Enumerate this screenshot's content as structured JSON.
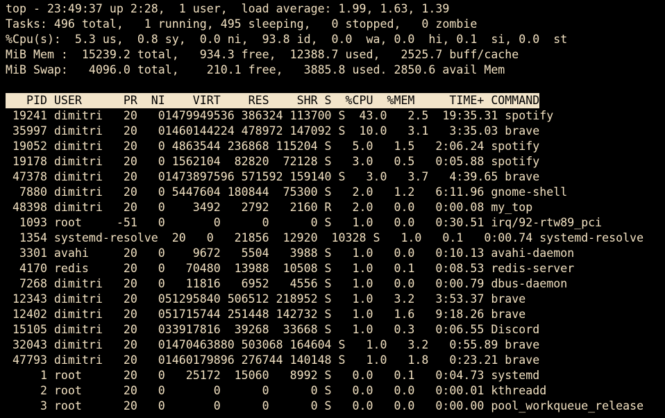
{
  "app": {
    "name": "top",
    "window_kind": "terminal"
  },
  "colors": {
    "background": "#000000",
    "foreground": "#f2e1c1",
    "header_background": "#f2e4ca",
    "header_foreground": "#000000"
  },
  "summary": {
    "lines": [
      "top - 23:49:37 up 2:28,  1 user,  load average: 1.99, 1.63, 1.39",
      "Tasks: 496 total,   1 running, 495 sleeping,   0 stopped,   0 zombie",
      "%Cpu(s):  5.3 us,  0.8 sy,  0.0 ni,  93.8 id,  0.0  wa, 0.0  hi, 0.1  si, 0.0  st",
      "MiB Mem :  15239.2 total,   934.3 free,  12388.7 used,   2525.7 buff/cache",
      "MiB Swap:   4096.0 total,    210.1 free,   3885.8 used. 2850.6 avail Mem"
    ],
    "uptime": "2:28",
    "time": "23:49:37",
    "users": "1",
    "load_average": [
      "1.99",
      "1.63",
      "1.39"
    ],
    "tasks": {
      "total": "496",
      "running": "1",
      "sleeping": "495",
      "stopped": "0",
      "zombie": "0"
    },
    "cpu": {
      "us": "5.3",
      "sy": "0.8",
      "ni": "0.0",
      "id": "93.8",
      "wa": "0.0",
      "hi": "0.0",
      "si": "0.1",
      "st": "0.0"
    },
    "mem_mib": {
      "total": "15239.2",
      "free": "934.3",
      "used": "12388.7",
      "buff_cache": "2525.7"
    },
    "swap_mib": {
      "total": "4096.0",
      "free": "210.1",
      "used": "3885.8",
      "avail": "2850.6"
    }
  },
  "table": {
    "columns": [
      "PID",
      "USER",
      "PR",
      "NI",
      "VIRT",
      "RES",
      "SHR",
      "S",
      "%CPU",
      "%MEM",
      "TIME+",
      "COMMAND"
    ],
    "field_widths": {
      "pid": 6,
      "user": 8,
      "pr": 3,
      "ni": 3,
      "virt": 8,
      "res": 6,
      "shr": 6,
      "cpu": 5,
      "mem": 5,
      "time": 9
    },
    "rows": [
      {
        "pid": "19241",
        "user": "dimitri",
        "pr": "20",
        "ni": "0",
        "virt": "1479949536",
        "res": "386324",
        "shr": "113700",
        "s": "S",
        "cpu": "43.0",
        "mem": "2.5",
        "time": "19:35.31",
        "command": "spotify"
      },
      {
        "pid": "35997",
        "user": "dimitri",
        "pr": "20",
        "ni": "0",
        "virt": "1460144224",
        "res": "478972",
        "shr": "147092",
        "s": "S",
        "cpu": "10.0",
        "mem": "3.1",
        "time": "3:35.03",
        "command": "brave"
      },
      {
        "pid": "19052",
        "user": "dimitri",
        "pr": "20",
        "ni": "0",
        "virt": "4863544",
        "res": "236868",
        "shr": "115204",
        "s": "S",
        "cpu": "5.0",
        "mem": "1.5",
        "time": "2:06.24",
        "command": "spotify"
      },
      {
        "pid": "19178",
        "user": "dimitri",
        "pr": "20",
        "ni": "0",
        "virt": "1562104",
        "res": "82820",
        "shr": "72128",
        "s": "S",
        "cpu": "3.0",
        "mem": "0.5",
        "time": "0:05.88",
        "command": "spotify"
      },
      {
        "pid": "47378",
        "user": "dimitri",
        "pr": "20",
        "ni": "0",
        "virt": "1473897596",
        "res": "571592",
        "shr": "159140",
        "s": "S",
        "cpu": "3.0",
        "mem": "3.7",
        "time": "4:39.65",
        "command": "brave"
      },
      {
        "pid": "7880",
        "user": "dimitri",
        "pr": "20",
        "ni": "0",
        "virt": "5447604",
        "res": "180844",
        "shr": "75300",
        "s": "S",
        "cpu": "2.0",
        "mem": "1.2",
        "time": "6:11.96",
        "command": "gnome-shell"
      },
      {
        "pid": "48398",
        "user": "dimitri",
        "pr": "20",
        "ni": "0",
        "virt": "3492",
        "res": "2792",
        "shr": "2160",
        "s": "R",
        "cpu": "2.0",
        "mem": "0.0",
        "time": "0:00.08",
        "command": "my_top"
      },
      {
        "pid": "1093",
        "user": "root",
        "pr": "-51",
        "ni": "0",
        "virt": "0",
        "res": "0",
        "shr": "0",
        "s": "S",
        "cpu": "1.0",
        "mem": "0.0",
        "time": "0:30.51",
        "command": "irq/92-rtw89_pci"
      },
      {
        "pid": "1354",
        "user": "systemd-resolve",
        "pr": "20",
        "ni": "0",
        "virt": "21856",
        "res": "12920",
        "shr": "10328",
        "s": "S",
        "cpu": "1.0",
        "mem": "0.1",
        "time": "0:00.74",
        "command": "systemd-resolve"
      },
      {
        "pid": "3301",
        "user": "avahi",
        "pr": "20",
        "ni": "0",
        "virt": "9672",
        "res": "5504",
        "shr": "3988",
        "s": "S",
        "cpu": "1.0",
        "mem": "0.0",
        "time": "0:10.13",
        "command": "avahi-daemon"
      },
      {
        "pid": "4170",
        "user": "redis",
        "pr": "20",
        "ni": "0",
        "virt": "70480",
        "res": "13988",
        "shr": "10508",
        "s": "S",
        "cpu": "1.0",
        "mem": "0.1",
        "time": "0:08.53",
        "command": "redis-server"
      },
      {
        "pid": "7268",
        "user": "dimitri",
        "pr": "20",
        "ni": "0",
        "virt": "11816",
        "res": "6952",
        "shr": "4556",
        "s": "S",
        "cpu": "1.0",
        "mem": "0.0",
        "time": "0:00.79",
        "command": "dbus-daemon"
      },
      {
        "pid": "12343",
        "user": "dimitri",
        "pr": "20",
        "ni": "0",
        "virt": "51295840",
        "res": "506512",
        "shr": "218952",
        "s": "S",
        "cpu": "1.0",
        "mem": "3.2",
        "time": "3:53.37",
        "command": "brave"
      },
      {
        "pid": "12402",
        "user": "dimitri",
        "pr": "20",
        "ni": "0",
        "virt": "51715744",
        "res": "251448",
        "shr": "142732",
        "s": "S",
        "cpu": "1.0",
        "mem": "1.6",
        "time": "9:18.26",
        "command": "brave"
      },
      {
        "pid": "15105",
        "user": "dimitri",
        "pr": "20",
        "ni": "0",
        "virt": "33917816",
        "res": "39268",
        "shr": "33668",
        "s": "S",
        "cpu": "1.0",
        "mem": "0.3",
        "time": "0:06.55",
        "command": "Discord"
      },
      {
        "pid": "32043",
        "user": "dimitri",
        "pr": "20",
        "ni": "0",
        "virt": "1470463880",
        "res": "503068",
        "shr": "164604",
        "s": "S",
        "cpu": "1.0",
        "mem": "3.2",
        "time": "0:55.89",
        "command": "brave"
      },
      {
        "pid": "47793",
        "user": "dimitri",
        "pr": "20",
        "ni": "0",
        "virt": "1460179896",
        "res": "276744",
        "shr": "140148",
        "s": "S",
        "cpu": "1.0",
        "mem": "1.8",
        "time": "0:23.21",
        "command": "brave"
      },
      {
        "pid": "1",
        "user": "root",
        "pr": "20",
        "ni": "0",
        "virt": "25172",
        "res": "15060",
        "shr": "8992",
        "s": "S",
        "cpu": "0.0",
        "mem": "0.1",
        "time": "0:04.73",
        "command": "systemd"
      },
      {
        "pid": "2",
        "user": "root",
        "pr": "20",
        "ni": "0",
        "virt": "0",
        "res": "0",
        "shr": "0",
        "s": "S",
        "cpu": "0.0",
        "mem": "0.0",
        "time": "0:00.01",
        "command": "kthreadd"
      },
      {
        "pid": "3",
        "user": "root",
        "pr": "20",
        "ni": "0",
        "virt": "0",
        "res": "0",
        "shr": "0",
        "s": "S",
        "cpu": "0.0",
        "mem": "0.0",
        "time": "0:00.00",
        "command": "pool_workqueue_release"
      }
    ]
  }
}
